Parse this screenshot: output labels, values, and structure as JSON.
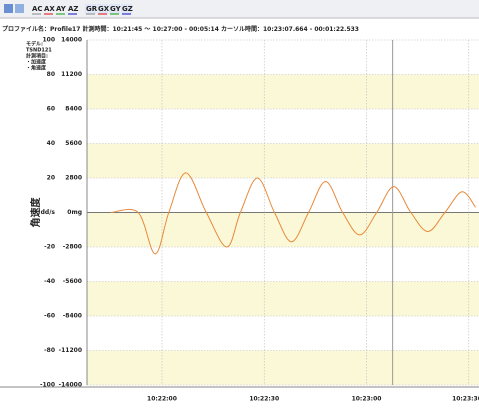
{
  "toolbar": [
    "AC",
    "AX",
    "AY",
    "AZ",
    "GR",
    "GX",
    "GY",
    "GZ"
  ],
  "header": {
    "profile": "プロファイル名：Profile17",
    "measure": "計測時間：10:21:45 〜 10:27:00 - 00:05:14",
    "cursor_label": "カーソル時間：",
    "cursor_time": "10:23:07.664",
    "cursor_offset": " - 00:01:22.533"
  },
  "info": [
    "モデル:",
    "TSND121",
    "計測項目:",
    "・加速度",
    "・角速度"
  ],
  "chart_data": {
    "type": "line",
    "y_label": "角速度",
    "x": [
      "10:21:45",
      "10:21:53",
      "10:21:58",
      "10:22:02",
      "10:22:07",
      "10:22:13",
      "10:22:19",
      "10:22:23",
      "10:22:28",
      "10:22:33",
      "10:22:38",
      "10:22:43",
      "10:22:48",
      "10:22:53",
      "10:22:58",
      "10:23:03",
      "10:23:08",
      "10:23:13",
      "10:23:18",
      "10:23:23",
      "10:23:28",
      "10:23:32"
    ],
    "series": [
      {
        "color": "#e8893a",
        "values": [
          0,
          0,
          -24,
          0,
          23,
          0,
          -20,
          0,
          20,
          0,
          -17,
          0,
          18,
          0,
          -13,
          0,
          15,
          0,
          -11,
          0,
          12,
          3
        ]
      }
    ],
    "xlim": [
      "10:21:38",
      "10:23:33"
    ],
    "xticks": [
      "10:22:00",
      "10:22:30",
      "10:23:00",
      "10:23:30"
    ],
    "ylim": [
      -100,
      100
    ],
    "yticks": [
      100,
      80,
      60,
      40,
      20,
      {
        "value": 0,
        "label": "dd/s"
      },
      -20,
      -40,
      -60,
      -80,
      -100
    ],
    "y2lim": [
      -14000,
      14000
    ],
    "y2ticks": [
      14000,
      11200,
      8400,
      5600,
      2800,
      {
        "value": 0,
        "label": "0mg"
      },
      -2800,
      -5600,
      -8400,
      -11200,
      -14000
    ],
    "grid": true,
    "band_color": "#fbf8d8"
  }
}
